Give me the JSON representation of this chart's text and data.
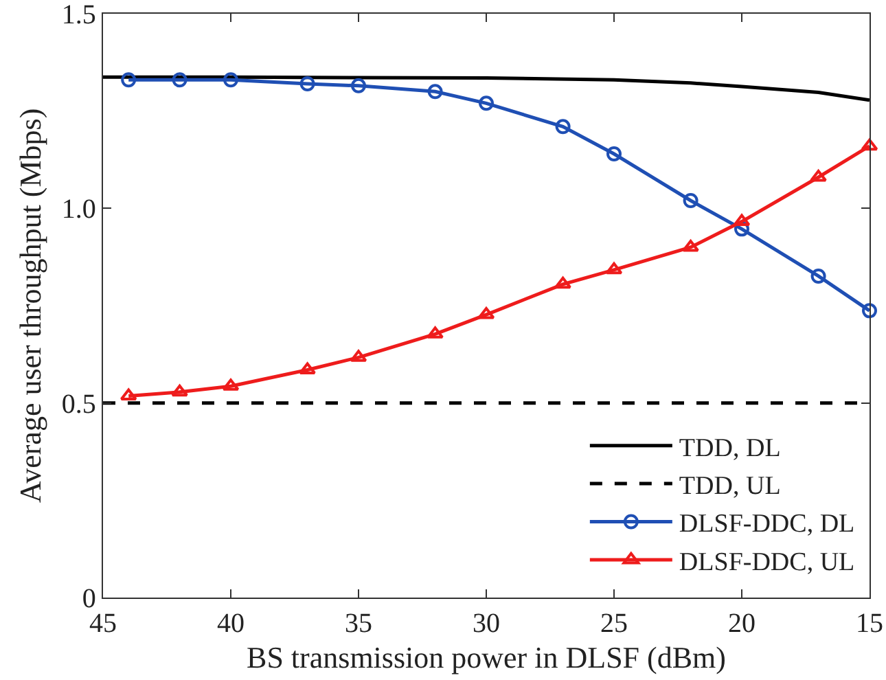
{
  "chart_data": {
    "type": "line",
    "xlabel": "BS transmission power in DLSF (dBm)",
    "ylabel": "Average user throughput (Mbps)",
    "xlim": [
      45,
      15
    ],
    "xticks": [
      45,
      40,
      35,
      30,
      25,
      20,
      15
    ],
    "ylim": [
      0,
      1.5
    ],
    "yticks": [
      0,
      0.5,
      {
        "value": 1,
        "label": "1.0"
      },
      1.5
    ],
    "grid": false,
    "legend": "bottom right",
    "series": [
      {
        "name": "TDD, DL",
        "color": "#000000",
        "marker": "none",
        "line_style": "solid",
        "x": [
          45,
          40,
          35,
          30,
          25,
          22,
          20,
          17,
          15
        ],
        "values": [
          1.337,
          1.337,
          1.336,
          1.335,
          1.33,
          1.322,
          1.313,
          1.298,
          1.278
        ]
      },
      {
        "name": "TDD, UL",
        "color": "#000000",
        "marker": "none",
        "line_style": "dashed",
        "x": [
          45,
          15
        ],
        "values": [
          0.5,
          0.5
        ]
      },
      {
        "name": "DLSF-DDC, DL",
        "color": "#1f4fb4",
        "marker": "circle",
        "line_style": "solid",
        "x": [
          44,
          42,
          40,
          37,
          35,
          32,
          30,
          27,
          25,
          22,
          20,
          17,
          15
        ],
        "values": [
          1.33,
          1.33,
          1.33,
          1.32,
          1.315,
          1.3,
          1.27,
          1.21,
          1.14,
          1.02,
          0.947,
          0.826,
          0.737
        ]
      },
      {
        "name": "DLSF-DDC, UL",
        "color": "#ee1c1c",
        "marker": "triangle",
        "line_style": "solid",
        "x": [
          44,
          42,
          40,
          37,
          35,
          32,
          30,
          27,
          25,
          22,
          20,
          17,
          15
        ],
        "values": [
          0.518,
          0.528,
          0.543,
          0.585,
          0.617,
          0.677,
          0.727,
          0.805,
          0.842,
          0.9,
          0.966,
          1.08,
          1.16
        ]
      }
    ]
  }
}
